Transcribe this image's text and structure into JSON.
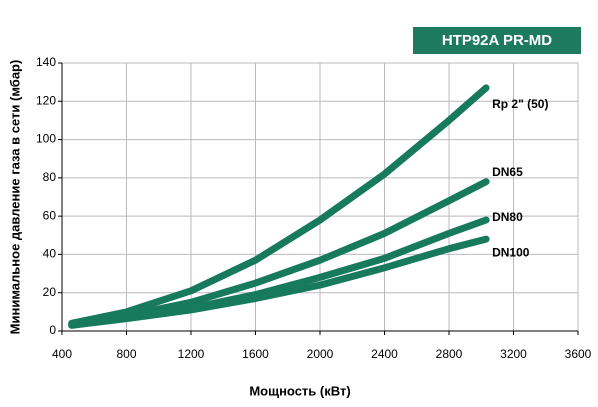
{
  "chart_data": {
    "type": "line",
    "badge": "HTP92A PR-MD",
    "x_label": "Мощность  (кВт)",
    "y_label": "Минимальное давление газа в сети (мбар)",
    "x": [
      460,
      800,
      1200,
      1600,
      2000,
      2400,
      2800,
      3030
    ],
    "series": [
      {
        "name": "Rp 2\" (50)",
        "color": "#177a5c",
        "values": [
          4,
          10,
          21,
          37,
          58,
          82,
          110,
          127
        ]
      },
      {
        "name": "DN65",
        "color": "#177a5c",
        "values": [
          3.5,
          8,
          15,
          25,
          37,
          51,
          68,
          78
        ]
      },
      {
        "name": "DN80",
        "color": "#177a5c",
        "values": [
          3,
          7,
          12,
          19,
          28,
          38,
          51,
          58
        ]
      },
      {
        "name": "DN100",
        "color": "#177a5c",
        "values": [
          3,
          6.5,
          11,
          17,
          24,
          33,
          43,
          48
        ]
      }
    ],
    "xlim": [
      400,
      3600
    ],
    "xticks": [
      400,
      800,
      1200,
      1600,
      2000,
      2400,
      2800,
      3200,
      3600
    ],
    "ylim": [
      0,
      140
    ],
    "yticks": [
      0,
      20,
      40,
      60,
      80,
      100,
      120,
      140
    ],
    "grid": true
  }
}
